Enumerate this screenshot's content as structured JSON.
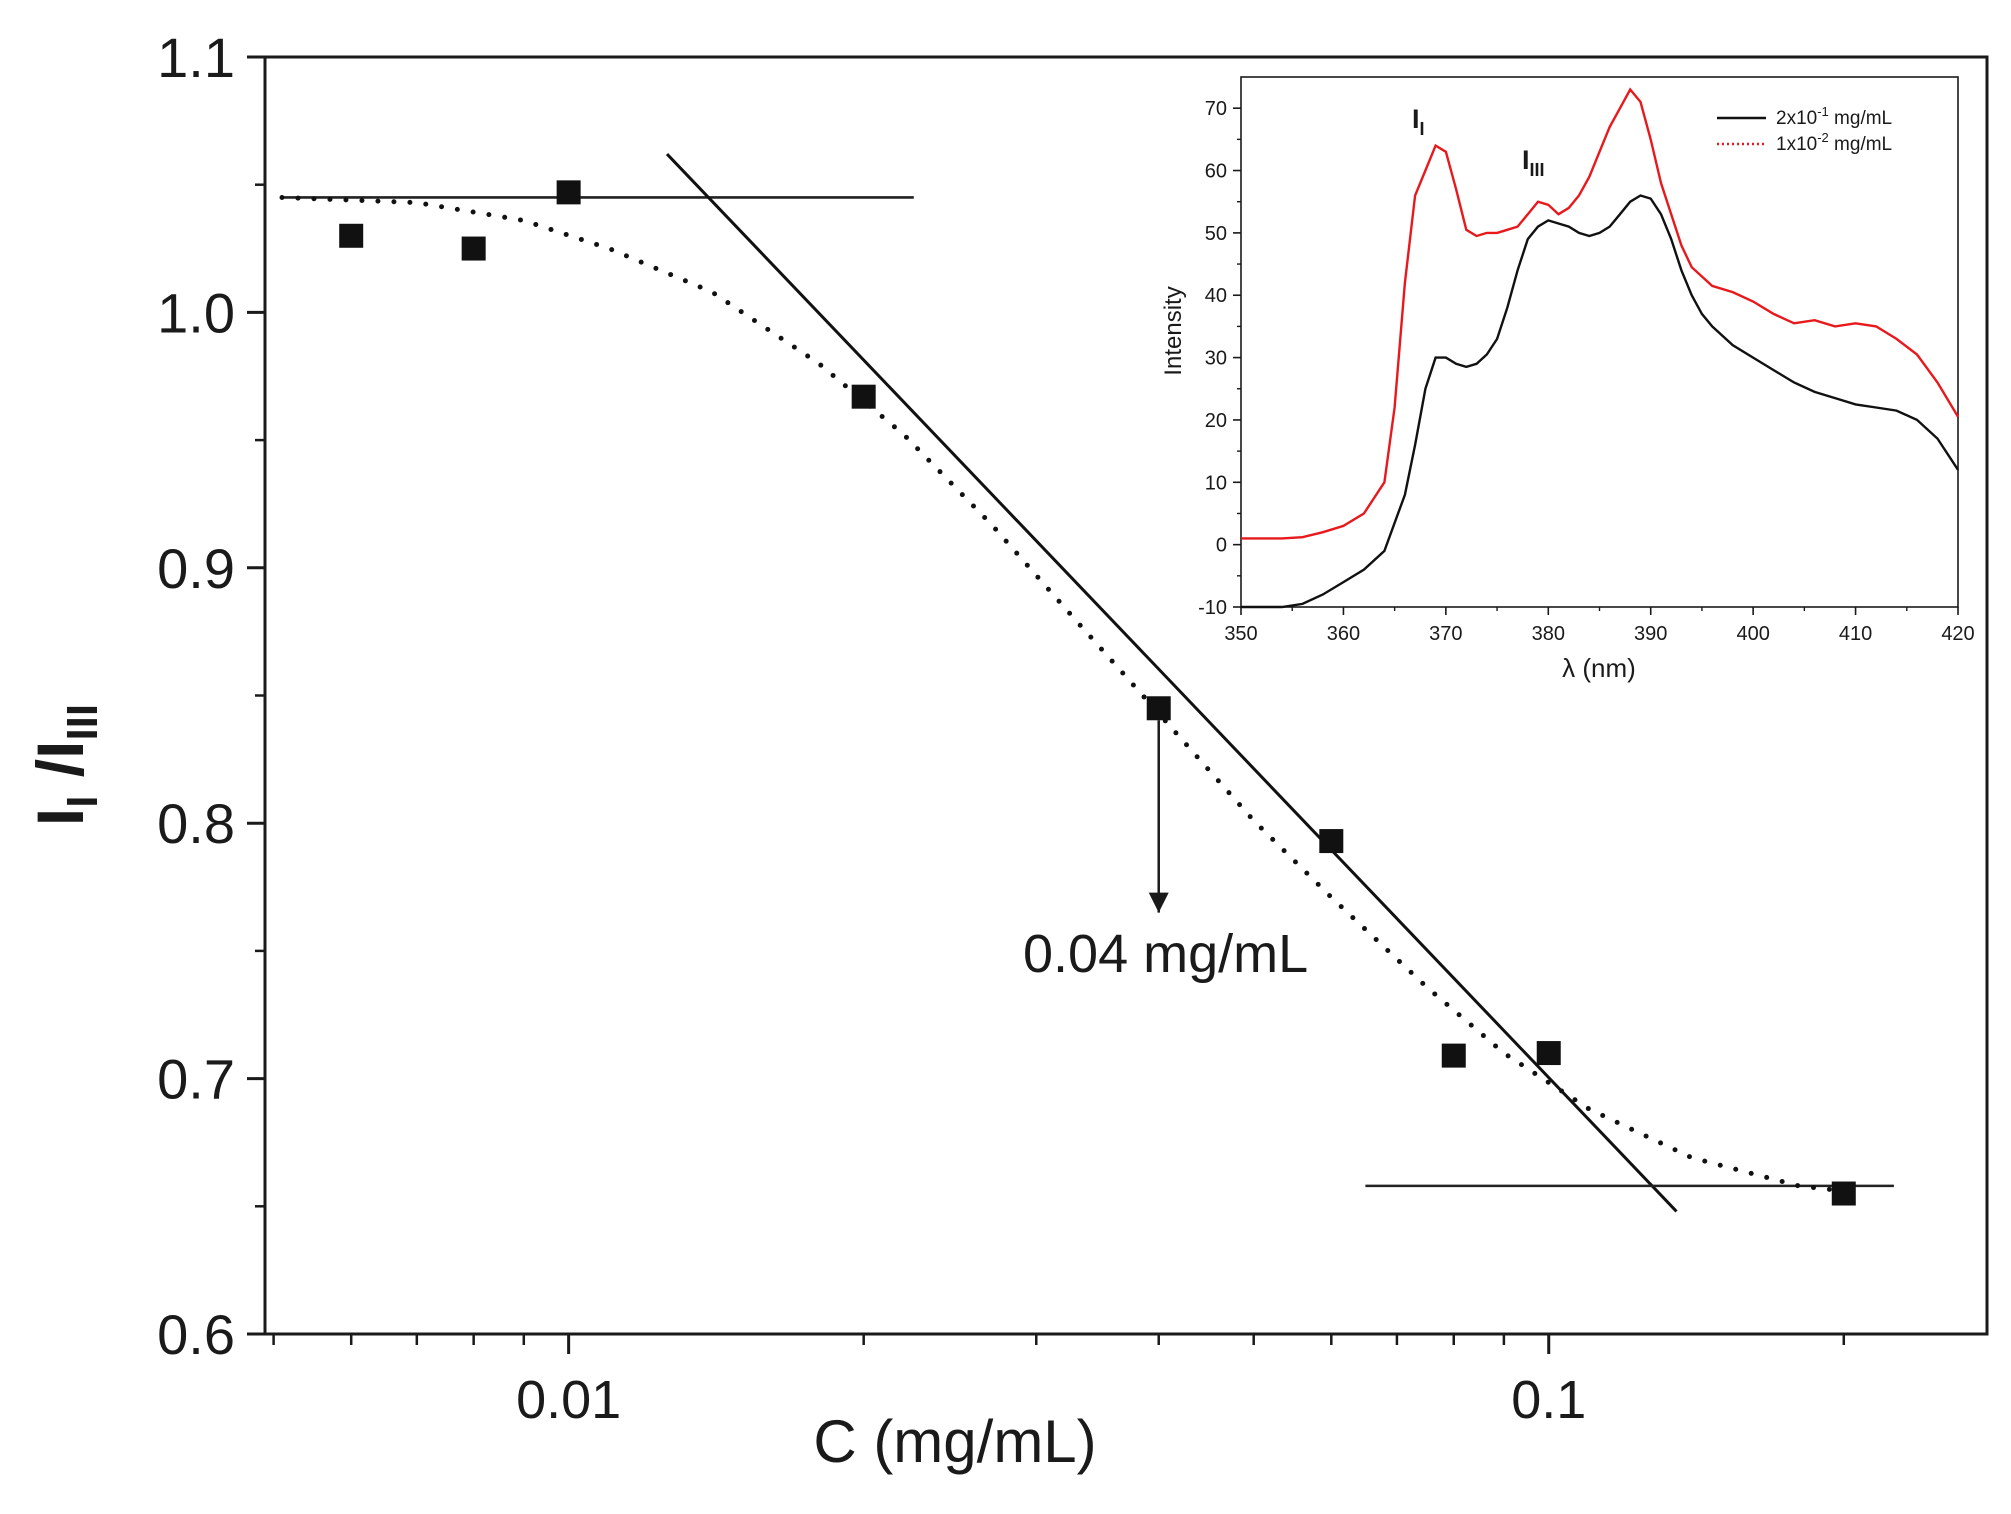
{
  "chart_data": [
    {
      "type": "scatter",
      "scale_x": "log",
      "title": "",
      "xlabel": "C (mg/mL)",
      "ylabel": {
        "main": "I",
        "sub1": "I",
        "sep": " /I",
        "sub2": "III"
      },
      "xlim": [
        0.0049,
        0.28
      ],
      "ylim": [
        0.6,
        1.1
      ],
      "xticks": [
        {
          "value": 0.01,
          "label": "0.01"
        },
        {
          "value": 0.1,
          "label": "0.1"
        }
      ],
      "yticks": [
        {
          "value": 0.6,
          "label": "0.6"
        },
        {
          "value": 0.7,
          "label": "0.7"
        },
        {
          "value": 0.8,
          "label": "0.8"
        },
        {
          "value": 0.9,
          "label": "0.9"
        },
        {
          "value": 1.0,
          "label": "1.0"
        },
        {
          "value": 1.1,
          "label": "1.1"
        }
      ],
      "series": [
        {
          "name": "I_I/I_III",
          "marker": "square",
          "points": [
            {
              "x": 0.006,
              "y": 1.03
            },
            {
              "x": 0.008,
              "y": 1.025
            },
            {
              "x": 0.01,
              "y": 1.047
            },
            {
              "x": 0.02,
              "y": 0.967
            },
            {
              "x": 0.04,
              "y": 0.845
            },
            {
              "x": 0.06,
              "y": 0.793
            },
            {
              "x": 0.08,
              "y": 0.709
            },
            {
              "x": 0.1,
              "y": 0.71
            },
            {
              "x": 0.2,
              "y": 0.655
            }
          ]
        }
      ],
      "fit_lines": [
        {
          "name": "upper-plateau",
          "style": "solid",
          "points": [
            {
              "x": 0.0051,
              "y": 1.045
            },
            {
              "x": 0.0225,
              "y": 1.045
            }
          ]
        },
        {
          "name": "descending-fit",
          "style": "solid",
          "points": [
            {
              "x": 0.0126,
              "y": 1.062
            },
            {
              "x": 0.135,
              "y": 0.648
            }
          ]
        },
        {
          "name": "lower-plateau",
          "style": "solid",
          "points": [
            {
              "x": 0.065,
              "y": 0.658
            },
            {
              "x": 0.225,
              "y": 0.658
            }
          ]
        },
        {
          "name": "sigmoid-guide",
          "style": "dotted",
          "points": [
            {
              "x": 0.0051,
              "y": 1.045
            },
            {
              "x": 0.007,
              "y": 1.043
            },
            {
              "x": 0.009,
              "y": 1.036
            },
            {
              "x": 0.011,
              "y": 1.025
            },
            {
              "x": 0.014,
              "y": 1.008
            },
            {
              "x": 0.018,
              "y": 0.98
            },
            {
              "x": 0.022,
              "y": 0.952
            },
            {
              "x": 0.027,
              "y": 0.917
            },
            {
              "x": 0.033,
              "y": 0.879
            },
            {
              "x": 0.04,
              "y": 0.843
            },
            {
              "x": 0.05,
              "y": 0.801
            },
            {
              "x": 0.06,
              "y": 0.771
            },
            {
              "x": 0.075,
              "y": 0.736
            },
            {
              "x": 0.09,
              "y": 0.71
            },
            {
              "x": 0.11,
              "y": 0.688
            },
            {
              "x": 0.14,
              "y": 0.669
            },
            {
              "x": 0.18,
              "y": 0.658
            },
            {
              "x": 0.2,
              "y": 0.656
            }
          ]
        }
      ],
      "annotations": [
        {
          "text": "0.04 mg/mL",
          "arrow_x": 0.04,
          "arrow_from_y": 0.845,
          "arrow_to_y": 0.765
        }
      ]
    },
    {
      "type": "line",
      "title": "",
      "xlabel": "λ (nm)",
      "ylabel": "Intensity",
      "xlim": [
        350,
        420
      ],
      "ylim": [
        -10,
        75
      ],
      "xticks": [
        350,
        360,
        370,
        380,
        390,
        400,
        410,
        420
      ],
      "yticks": [
        -10,
        0,
        10,
        20,
        30,
        40,
        50,
        60,
        70
      ],
      "legend_position": "top-right",
      "peak_labels": [
        {
          "main": "I",
          "sub": "I",
          "x": 368,
          "y": 67
        },
        {
          "main": "I",
          "sub": "III",
          "x": 378,
          "y": 57
        }
      ],
      "series": [
        {
          "name": "2x10",
          "legend": {
            "base": "2x10",
            "exp": "-1",
            "unit": " mg/mL"
          },
          "color": "#111111",
          "style": "solid",
          "x": [
            350,
            352,
            354,
            356,
            358,
            360,
            362,
            364,
            366,
            367,
            368,
            369,
            370,
            371,
            372,
            373,
            374,
            375,
            376,
            377,
            378,
            379,
            380,
            381,
            382,
            383,
            384,
            385,
            386,
            387,
            388,
            389,
            390,
            391,
            392,
            393,
            394,
            395,
            396,
            398,
            400,
            402,
            404,
            406,
            408,
            410,
            412,
            414,
            416,
            418,
            420
          ],
          "y": [
            -10,
            -10,
            -10,
            -9.5,
            -8,
            -6,
            -4,
            -1,
            8,
            16,
            25,
            30,
            30,
            29,
            28.5,
            29,
            30.5,
            33,
            38,
            44,
            49,
            51,
            52,
            51.5,
            51,
            50,
            49.5,
            50,
            51,
            53,
            55,
            56,
            55.5,
            53,
            49,
            44,
            40,
            37,
            35,
            32,
            30,
            28,
            26,
            24.5,
            23.5,
            22.5,
            22,
            21.5,
            20,
            17,
            12
          ]
        },
        {
          "name": "1x10",
          "legend": {
            "base": "1x10",
            "exp": "-2",
            "unit": " mg/mL"
          },
          "color": "#e8191c",
          "style": "solid",
          "x": [
            350,
            352,
            354,
            356,
            358,
            360,
            362,
            364,
            365,
            366,
            367,
            368,
            369,
            370,
            371,
            372,
            373,
            374,
            375,
            376,
            377,
            378,
            379,
            380,
            381,
            382,
            383,
            384,
            385,
            386,
            387,
            388,
            389,
            390,
            391,
            392,
            393,
            394,
            395,
            396,
            398,
            400,
            402,
            404,
            406,
            408,
            410,
            412,
            414,
            416,
            418,
            420
          ],
          "y": [
            1,
            1,
            1,
            1.2,
            2,
            3,
            5,
            10,
            22,
            42,
            56,
            60,
            64,
            63,
            57,
            50.5,
            49.5,
            50,
            50,
            50.5,
            51,
            53,
            55,
            54.5,
            53,
            54,
            56,
            59,
            63,
            67,
            70,
            73,
            71,
            65,
            58,
            53,
            48,
            44.5,
            43,
            41.5,
            40.5,
            39,
            37,
            35.5,
            36,
            35,
            35.5,
            35,
            33,
            30.5,
            26,
            20.5
          ]
        }
      ]
    }
  ]
}
